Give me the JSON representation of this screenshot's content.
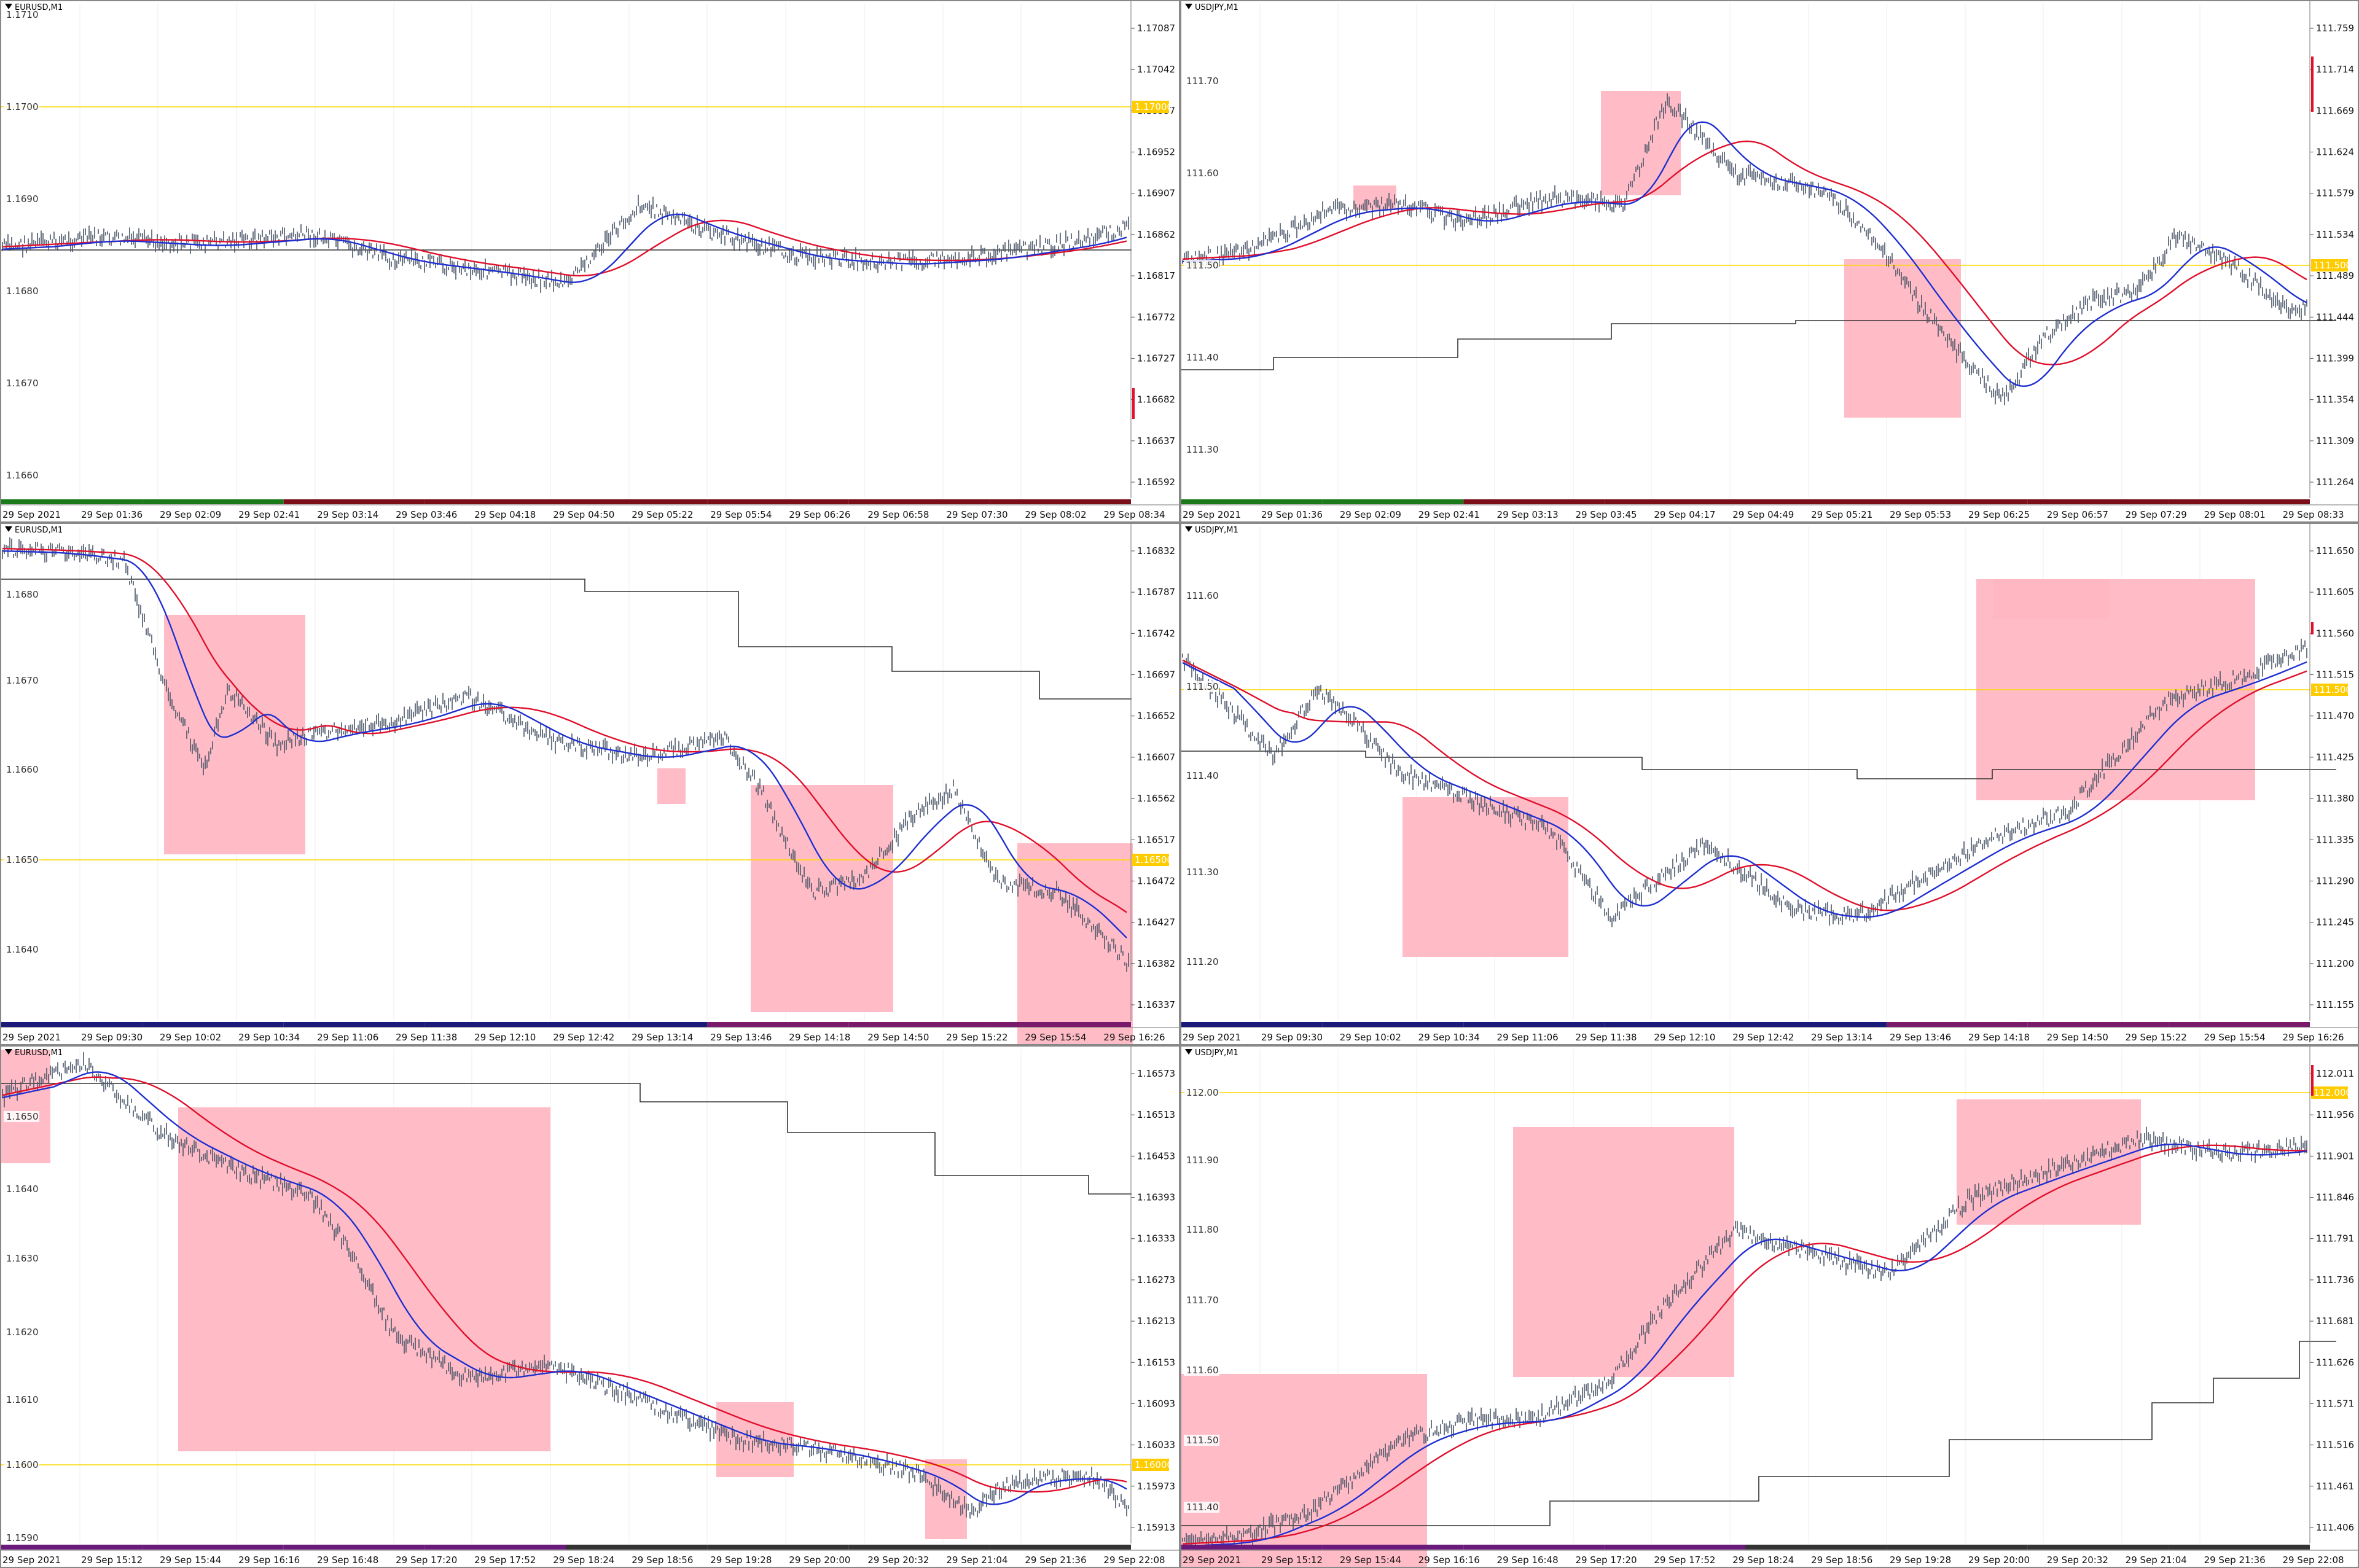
{
  "colors": {
    "price_bar": "#4a5568",
    "fast_ma": "#1f2fd0",
    "slow_ma": "#e0102c",
    "step_line": "#333333",
    "zone_fill": "#ffb6c1",
    "hline": "#ffd700",
    "vgrid": "#eeeeee",
    "price_tag": "#ffcc00",
    "red_tag": "#e0102c"
  },
  "panes": [
    {
      "id": "eurusd-top",
      "title": "EURUSD,M1",
      "axis_labels": [
        "1.17087",
        "1.17042",
        "1.16997",
        "1.16952",
        "1.16907",
        "1.16862",
        "1.16817",
        "1.16772",
        "1.16727",
        "1.16682",
        "1.16637",
        "1.16592"
      ],
      "inner_labels": [
        "1.1710",
        "1.1700",
        "1.1690",
        "1.1680",
        "1.1670",
        "1.1660"
      ],
      "hline_label": "1.17000",
      "time_labels": [
        "29 Sep 2021",
        "29 Sep 01:36",
        "29 Sep 02:09",
        "29 Sep 02:41",
        "29 Sep 03:14",
        "29 Sep 03:46",
        "29 Sep 04:18",
        "29 Sep 04:50",
        "29 Sep 05:22",
        "29 Sep 05:54",
        "29 Sep 06:26",
        "29 Sep 06:58",
        "29 Sep 07:30",
        "29 Sep 08:02",
        "29 Sep 08:34"
      ]
    },
    {
      "id": "usdjpy-top",
      "title": "USDJPY,M1",
      "axis_labels": [
        "111.759",
        "111.714",
        "111.669",
        "111.624",
        "111.579",
        "111.534",
        "111.489",
        "111.444",
        "111.399",
        "111.354",
        "111.309",
        "111.264"
      ],
      "inner_labels": [
        "111.70",
        "111.60",
        "111.50",
        "111.40",
        "111.30"
      ],
      "hline_label": "111.500",
      "time_labels": [
        "29 Sep 2021",
        "29 Sep 01:36",
        "29 Sep 02:09",
        "29 Sep 02:41",
        "29 Sep 03:13",
        "29 Sep 03:45",
        "29 Sep 04:17",
        "29 Sep 04:49",
        "29 Sep 05:21",
        "29 Sep 05:53",
        "29 Sep 06:25",
        "29 Sep 06:57",
        "29 Sep 07:29",
        "29 Sep 08:01",
        "29 Sep 08:33"
      ]
    },
    {
      "id": "eurusd-mid",
      "title": "EURUSD,M1",
      "axis_labels": [
        "1.16832",
        "1.16787",
        "1.16742",
        "1.16697",
        "1.16652",
        "1.16607",
        "1.16562",
        "1.16517",
        "1.16472",
        "1.16427",
        "1.16382",
        "1.16337"
      ],
      "inner_labels": [
        "1.1680",
        "1.1670",
        "1.1660",
        "1.1650",
        "1.1640"
      ],
      "hline_label": "1.16500",
      "time_labels": [
        "29 Sep 2021",
        "29 Sep 09:30",
        "29 Sep 10:02",
        "29 Sep 10:34",
        "29 Sep 11:06",
        "29 Sep 11:38",
        "29 Sep 12:10",
        "29 Sep 12:42",
        "29 Sep 13:14",
        "29 Sep 13:46",
        "29 Sep 14:18",
        "29 Sep 14:50",
        "29 Sep 15:22",
        "29 Sep 15:54",
        "29 Sep 16:26"
      ]
    },
    {
      "id": "usdjpy-mid",
      "title": "USDJPY,M1",
      "axis_labels": [
        "111.650",
        "111.605",
        "111.560",
        "111.515",
        "111.470",
        "111.425",
        "111.380",
        "111.335",
        "111.290",
        "111.245",
        "111.200",
        "111.155"
      ],
      "inner_labels": [
        "111.60",
        "111.50",
        "111.40",
        "111.30",
        "111.20"
      ],
      "hline_label": "111.500",
      "time_labels": [
        "29 Sep 2021",
        "29 Sep 09:30",
        "29 Sep 10:02",
        "29 Sep 10:34",
        "29 Sep 11:06",
        "29 Sep 11:38",
        "29 Sep 12:10",
        "29 Sep 12:42",
        "29 Sep 13:14",
        "29 Sep 13:46",
        "29 Sep 14:18",
        "29 Sep 14:50",
        "29 Sep 15:22",
        "29 Sep 15:54",
        "29 Sep 16:26"
      ]
    },
    {
      "id": "eurusd-bot",
      "title": "EURUSD,M1",
      "axis_labels": [
        "1.16573",
        "1.16513",
        "1.16453",
        "1.16393",
        "1.16333",
        "1.16273",
        "1.16213",
        "1.16153",
        "1.16093",
        "1.16033",
        "1.15973",
        "1.15913"
      ],
      "inner_labels": [
        "1.1650",
        "1.1640",
        "1.1630",
        "1.1620",
        "1.1610",
        "1.1600",
        "1.1590"
      ],
      "hline_label": "1.16000",
      "time_labels": [
        "29 Sep 2021",
        "29 Sep 15:12",
        "29 Sep 15:44",
        "29 Sep 16:16",
        "29 Sep 16:48",
        "29 Sep 17:20",
        "29 Sep 17:52",
        "29 Sep 18:24",
        "29 Sep 18:56",
        "29 Sep 19:28",
        "29 Sep 20:00",
        "29 Sep 20:32",
        "29 Sep 21:04",
        "29 Sep 21:36",
        "29 Sep 22:08"
      ]
    },
    {
      "id": "usdjpy-bot",
      "title": "USDJPY,M1",
      "axis_labels": [
        "112.011",
        "111.956",
        "111.901",
        "111.846",
        "111.791",
        "111.736",
        "111.681",
        "111.626",
        "111.571",
        "111.516",
        "111.461",
        "111.406"
      ],
      "inner_labels": [
        "112.00",
        "111.90",
        "111.80",
        "111.70",
        "111.60",
        "111.50",
        "111.40"
      ],
      "hline_label": "112.000",
      "time_labels": [
        "29 Sep 2021",
        "29 Sep 15:12",
        "29 Sep 15:44",
        "29 Sep 16:16",
        "29 Sep 16:48",
        "29 Sep 17:20",
        "29 Sep 17:52",
        "29 Sep 18:24",
        "29 Sep 18:56",
        "29 Sep 19:28",
        "29 Sep 20:00",
        "29 Sep 20:32",
        "29 Sep 21:04",
        "29 Sep 21:36",
        "29 Sep 22:08"
      ]
    }
  ]
}
